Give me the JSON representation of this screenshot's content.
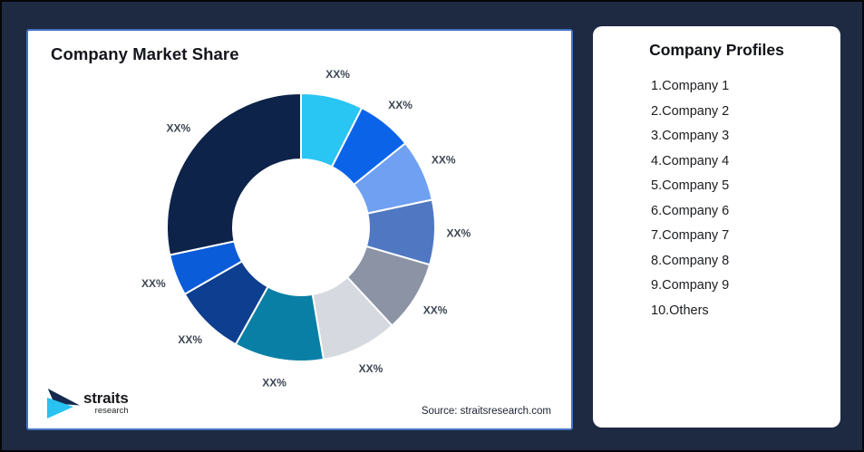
{
  "page": {
    "background": "#1E2942",
    "frame_border": "#060608"
  },
  "chart_card": {
    "title": "Company Market Share",
    "source": "Source: straitsresearch.com",
    "border_color": "#4472C4",
    "logo": {
      "brand": "straits",
      "sub": "research",
      "mark_navy": "#152A4E",
      "mark_cyan": "#29C2F1"
    }
  },
  "profiles_card": {
    "title": "Company Profiles",
    "items": [
      "1.Company 1",
      "2.Company 2",
      "3.Company 3",
      "4.Company 4",
      "5.Company 5",
      "6.Company 6",
      "7.Company 7",
      "8.Company 8",
      "9.Company 9",
      "10.Others"
    ]
  },
  "chart_data": {
    "type": "pie",
    "subtype": "donut",
    "title": "Company Market Share",
    "start_angle_deg": 0,
    "direction": "clockwise",
    "inner_radius_ratio": 0.507,
    "separator_color": "#ffffff",
    "label_text_color": "#3E4653",
    "segments": [
      {
        "name": "Company 1",
        "label": "XX%",
        "value": 7.5,
        "color": "#29C5F3"
      },
      {
        "name": "Company 2",
        "label": "XX%",
        "value": 6.7,
        "color": "#0B64E8"
      },
      {
        "name": "Company 3",
        "label": "XX%",
        "value": 7.5,
        "color": "#6FA0F2"
      },
      {
        "name": "Company 4",
        "label": "XX%",
        "value": 7.8,
        "color": "#5078C2"
      },
      {
        "name": "Company 5",
        "label": "XX%",
        "value": 8.6,
        "color": "#8B93A5"
      },
      {
        "name": "Company 6",
        "label": "XX%",
        "value": 9.2,
        "color": "#D6D9DF"
      },
      {
        "name": "Company 7",
        "label": "XX%",
        "value": 10.8,
        "color": "#0A7FA6"
      },
      {
        "name": "Company 8",
        "label": "XX%",
        "value": 8.6,
        "color": "#0E3E8F"
      },
      {
        "name": "Company 9",
        "label": "XX%",
        "value": 5.0,
        "color": "#0B5CD9"
      },
      {
        "name": "Others",
        "label": "XX%",
        "value": 28.3,
        "color": "#0D2349"
      }
    ]
  }
}
